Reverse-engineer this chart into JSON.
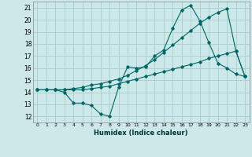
{
  "title": "",
  "xlabel": "Humidex (Indice chaleur)",
  "bg_color": "#cce8e8",
  "grid_color": "#aacccc",
  "line_color": "#006666",
  "xlim": [
    -0.5,
    23.5
  ],
  "ylim": [
    11.5,
    21.5
  ],
  "xticks": [
    0,
    1,
    2,
    3,
    4,
    5,
    6,
    7,
    8,
    9,
    10,
    11,
    12,
    13,
    14,
    15,
    16,
    17,
    18,
    19,
    20,
    21,
    22,
    23
  ],
  "yticks": [
    12,
    13,
    14,
    15,
    16,
    17,
    18,
    19,
    20,
    21
  ],
  "line1_x": [
    0,
    1,
    2,
    3,
    4,
    5,
    6,
    7,
    8,
    9,
    10,
    11,
    12,
    13,
    14,
    15,
    16,
    17,
    18,
    19,
    20,
    21,
    22,
    23
  ],
  "line1_y": [
    14.2,
    14.2,
    14.2,
    14.0,
    13.1,
    13.1,
    12.9,
    12.2,
    12.0,
    14.4,
    16.1,
    16.0,
    16.1,
    17.0,
    17.5,
    19.3,
    20.8,
    21.2,
    19.9,
    18.1,
    16.4,
    16.0,
    15.5,
    15.3
  ],
  "line2_x": [
    0,
    1,
    2,
    3,
    4,
    5,
    6,
    7,
    8,
    9,
    10,
    11,
    12,
    13,
    14,
    15,
    16,
    17,
    18,
    19,
    20,
    21,
    22,
    23
  ],
  "line2_y": [
    14.2,
    14.2,
    14.2,
    14.2,
    14.2,
    14.2,
    14.3,
    14.4,
    14.5,
    14.7,
    14.9,
    15.1,
    15.3,
    15.5,
    15.7,
    15.9,
    16.1,
    16.3,
    16.5,
    16.8,
    17.0,
    17.2,
    17.4,
    15.3
  ],
  "line3_x": [
    0,
    1,
    2,
    3,
    4,
    5,
    6,
    7,
    8,
    9,
    10,
    11,
    12,
    13,
    14,
    15,
    16,
    17,
    18,
    19,
    20,
    21,
    22,
    23
  ],
  "line3_y": [
    14.2,
    14.2,
    14.2,
    14.2,
    14.3,
    14.4,
    14.6,
    14.7,
    14.9,
    15.1,
    15.4,
    15.8,
    16.2,
    16.7,
    17.3,
    17.9,
    18.5,
    19.1,
    19.7,
    20.2,
    20.6,
    20.9,
    17.4,
    15.3
  ]
}
